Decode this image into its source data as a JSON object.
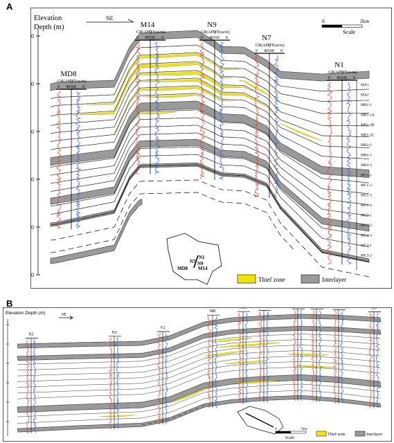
{
  "panel_a": {
    "letter": "A",
    "axis_title_line1": "Elevation",
    "axis_title_line2": "Depth (m)",
    "direction": "NE",
    "depth_ticks": [
      "-2800",
      "-2900",
      "-3000",
      "-3100",
      "-3200",
      "-3300"
    ],
    "scale_min": "0",
    "scale_max": "2km",
    "scale_label": "Scale",
    "wells": [
      {
        "name": "MD8",
        "gr_label": "GR(API)",
        "dt_label": "DT(us/m)",
        "gr_range": [
          "0",
          "40"
        ],
        "dt_range": [
          "100",
          "0"
        ]
      },
      {
        "name": "M14",
        "gr_label": "GR(API)",
        "dt_label": "DT(us/m)",
        "gr_range": [
          "0",
          "40"
        ],
        "dt_range": [
          "100",
          "0"
        ]
      },
      {
        "name": "N9",
        "gr_label": "GR(API)",
        "dt_label": "DT(us/m)",
        "gr_range": [
          "0",
          "40"
        ],
        "dt_range": [
          "100",
          "0"
        ]
      },
      {
        "name": "N7",
        "gr_label": "GR(API)",
        "dt_label": "DT(us/m)",
        "gr_range": [
          "0",
          "40"
        ],
        "dt_range": [
          "100",
          "0"
        ]
      },
      {
        "name": "N1",
        "gr_label": "GR(API)",
        "dt_label": "DT(us/m)",
        "gr_range": [
          "0",
          "40"
        ],
        "dt_range": [
          "100",
          "0"
        ]
      }
    ],
    "layers": [
      "MA1",
      "MA2",
      "MB1-1",
      "MB1-2A",
      "MB1-2B",
      "MB1-2C",
      "MB2-1",
      "MB2-2",
      "MB2-3",
      "MC1-1",
      "MC1-2",
      "MC1-3",
      "MC1-4",
      "MC2-1",
      "MC2-2",
      "MC2-3",
      "MC3-1",
      "MC3-2"
    ],
    "inset_wells": [
      "N1",
      "N7",
      "N9",
      "MD8",
      "M14"
    ],
    "legend": {
      "thief": "Thief zone",
      "interlayer": "Interlayer"
    }
  },
  "panel_b": {
    "letter": "B",
    "axis_title": "Elevation Depth (m)",
    "direction": "SE",
    "wells": [
      "N2",
      "N3",
      "V2",
      "M8",
      "N10",
      "N8",
      "MD9",
      "N11",
      "N12",
      "H5"
    ],
    "scale_min": "0",
    "scale_max": "7km",
    "scale_label": "Scale",
    "legend": {
      "thief": "Thief zone",
      "interlayer": "Interlayer"
    }
  },
  "colors": {
    "thief_zone": "#f2e600",
    "interlayer": "#9a9a9a",
    "gr_curve": "#e8402a",
    "dt_curve": "#2f5fd8",
    "line": "#000000"
  }
}
